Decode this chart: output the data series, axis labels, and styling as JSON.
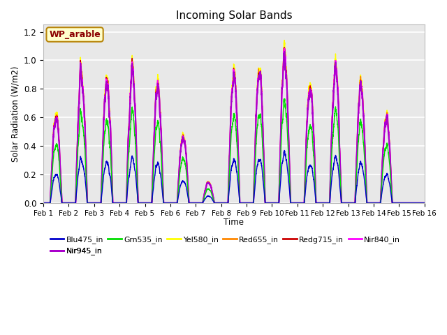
{
  "title": "Incoming Solar Bands",
  "xlabel": "Time",
  "ylabel": "Solar Radiation (W/m2)",
  "location_label": "WP_arable",
  "ylim": [
    0,
    1.25
  ],
  "n_days": 15,
  "axes_facecolor": "#e8e8e8",
  "plot_bg_color": "#e8e8e8",
  "grid_color": "white",
  "bands": [
    {
      "name": "Blu475_in",
      "color": "#0000cc",
      "lw": 1.0,
      "scale": 0.32
    },
    {
      "name": "Grn535_in",
      "color": "#00dd00",
      "lw": 1.0,
      "scale": 0.65
    },
    {
      "name": "Yel580_in",
      "color": "#ffff00",
      "lw": 1.0,
      "scale": 1.0
    },
    {
      "name": "Red655_in",
      "color": "#ff8800",
      "lw": 1.0,
      "scale": 0.97
    },
    {
      "name": "Redg715_in",
      "color": "#cc0000",
      "lw": 1.0,
      "scale": 0.96
    },
    {
      "name": "Nir840_in",
      "color": "#ff00ff",
      "lw": 1.5,
      "scale": 0.95
    },
    {
      "name": "Nir945_in",
      "color": "#aa00cc",
      "lw": 1.5,
      "scale": 0.94
    }
  ],
  "day_peaks": [
    0.63,
    0.95,
    0.9,
    0.93,
    0.85,
    0.5,
    0.15,
    0.94,
    0.95,
    1.03,
    0.88,
    0.97,
    0.85,
    0.63,
    0.0
  ],
  "xtick_labels": [
    "Feb 1",
    "Feb 2",
    "Feb 3",
    "Feb 4",
    "Feb 5",
    "Feb 6",
    "Feb 7",
    "Feb 8",
    "Feb 9",
    "Feb 10",
    "Feb 11",
    "Feb 12",
    "Feb 13",
    "Feb 14",
    "Feb 15",
    "Feb 16"
  ],
  "ytick_vals": [
    0.0,
    0.2,
    0.4,
    0.6,
    0.8,
    1.0,
    1.2
  ],
  "legend_bands": [
    {
      "name": "Blu475_in",
      "color": "#0000cc"
    },
    {
      "name": "Grn535_in",
      "color": "#00dd00"
    },
    {
      "name": "Yel580_in",
      "color": "#ffff00"
    },
    {
      "name": "Red655_in",
      "color": "#ff8800"
    },
    {
      "name": "Redg715_in",
      "color": "#cc0000"
    },
    {
      "name": "Nir840_in",
      "color": "#ff00ff"
    },
    {
      "name": "Nir945_in",
      "color": "#aa00cc"
    }
  ]
}
